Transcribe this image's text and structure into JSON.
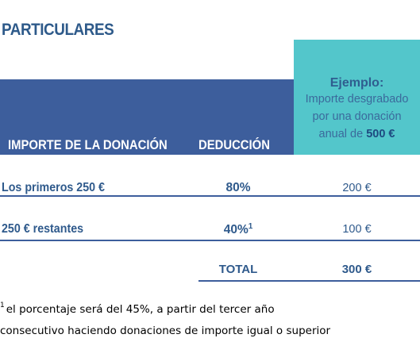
{
  "section_title": "PARTICULARES",
  "columns": {
    "amount": "IMPORTE DE LA DONACIÓN",
    "deduction": "DEDUCCIÓN"
  },
  "example": {
    "title": "Ejemplo:",
    "line1": "Importe desgrabado",
    "line2": "por una donación",
    "line3_prefix": "anual de ",
    "line3_amount": "500 €"
  },
  "rows": [
    {
      "label": "Los primeros 250 €",
      "deduction": "80%",
      "footnote_mark": "",
      "amount": "200 €"
    },
    {
      "label": "250 € restantes",
      "deduction": "40%",
      "footnote_mark": "1",
      "amount": "100 €"
    }
  ],
  "total": {
    "label": "TOTAL",
    "value": "300 €"
  },
  "footnote": {
    "mark": "1",
    "line1": "el porcentaje será del 45%, a partir del tercer año",
    "line2": "consecutivo haciendo donaciones de importe igual o superior"
  },
  "colors": {
    "header_band": "#3d5e9c",
    "example_box": "#53c6cb",
    "text_blue": "#2f5a8c"
  }
}
